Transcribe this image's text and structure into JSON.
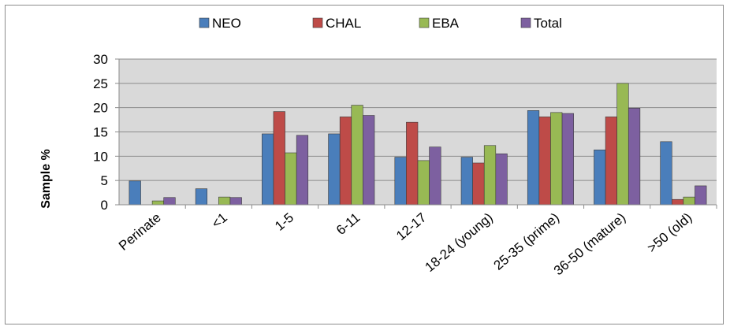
{
  "chart_data": {
    "type": "bar",
    "title": "",
    "xlabel": "",
    "ylabel": "Sample %",
    "ylim": [
      0,
      30
    ],
    "yticks": [
      0,
      5,
      10,
      15,
      20,
      25,
      30
    ],
    "grid": true,
    "legend_position": "top",
    "categories": [
      "Perinate",
      "<1",
      "1-5",
      "6-11",
      "12-17",
      "18-24 (young)",
      "25-35 (prime)",
      "36-50 (mature)",
      ">50 (old)"
    ],
    "series": [
      {
        "name": "NEO",
        "color": "#4a7ebb",
        "values": [
          4.9,
          3.3,
          14.6,
          14.6,
          9.8,
          9.8,
          19.4,
          11.3,
          13.0
        ]
      },
      {
        "name": "CHAL",
        "color": "#be4b48",
        "values": [
          0,
          0,
          19.2,
          18.1,
          17.0,
          8.6,
          18.1,
          18.1,
          1.1
        ]
      },
      {
        "name": "EBA",
        "color": "#98b954",
        "values": [
          0.8,
          1.6,
          10.7,
          20.5,
          9.1,
          12.2,
          19.0,
          25.0,
          1.6
        ]
      },
      {
        "name": "Total",
        "color": "#7d60a0",
        "values": [
          1.5,
          1.5,
          14.3,
          18.4,
          11.9,
          10.5,
          18.8,
          19.9,
          3.9
        ]
      }
    ]
  }
}
